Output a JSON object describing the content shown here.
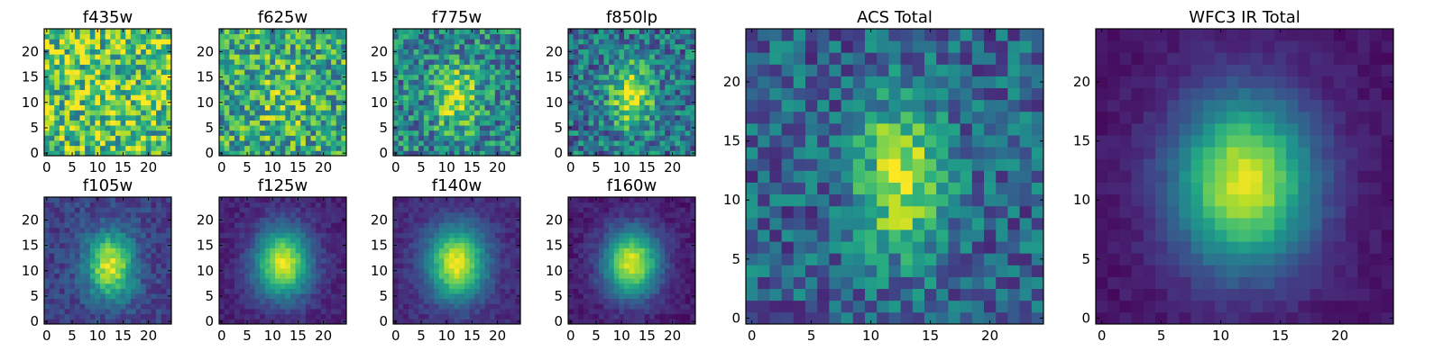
{
  "chart_data": [
    {
      "type": "heatmap",
      "title": "f435w",
      "xticks": [
        0,
        5,
        10,
        15,
        20
      ],
      "yticks": [
        0,
        5,
        10,
        15,
        20
      ],
      "xlim": [
        0,
        24
      ],
      "ylim": [
        0,
        24
      ],
      "colormap": "viridis",
      "source_profile": {
        "center": [
          12,
          11.5
        ],
        "peak": 0.05,
        "noise": 0.35,
        "base": 0.72,
        "spread": [
          3.5,
          4.5
        ],
        "seed": 11
      }
    },
    {
      "type": "heatmap",
      "title": "f625w",
      "xticks": [
        0,
        5,
        10,
        15,
        20
      ],
      "yticks": [
        0,
        5,
        10,
        15,
        20
      ],
      "xlim": [
        0,
        24
      ],
      "ylim": [
        0,
        24
      ],
      "colormap": "viridis",
      "source_profile": {
        "center": [
          12,
          11.5
        ],
        "peak": 0.15,
        "noise": 0.32,
        "base": 0.6,
        "spread": [
          3.5,
          4.5
        ],
        "seed": 23
      }
    },
    {
      "type": "heatmap",
      "title": "f775w",
      "xticks": [
        0,
        5,
        10,
        15,
        20
      ],
      "yticks": [
        0,
        5,
        10,
        15,
        20
      ],
      "xlim": [
        0,
        24
      ],
      "ylim": [
        0,
        24
      ],
      "colormap": "viridis",
      "source_profile": {
        "center": [
          12,
          11
        ],
        "peak": 0.45,
        "noise": 0.28,
        "base": 0.45,
        "spread": [
          3,
          4.5
        ],
        "seed": 37
      }
    },
    {
      "type": "heatmap",
      "title": "f850lp",
      "xticks": [
        0,
        5,
        10,
        15,
        20
      ],
      "yticks": [
        0,
        5,
        10,
        15,
        20
      ],
      "xlim": [
        0,
        24
      ],
      "ylim": [
        0,
        24
      ],
      "colormap": "viridis",
      "source_profile": {
        "center": [
          12,
          11.5
        ],
        "peak": 0.55,
        "noise": 0.26,
        "base": 0.38,
        "spread": [
          3,
          4.5
        ],
        "seed": 41
      }
    },
    {
      "type": "heatmap",
      "title": "f105w",
      "xticks": [
        0,
        5,
        10,
        15,
        20
      ],
      "yticks": [
        0,
        5,
        10,
        15,
        20
      ],
      "xlim": [
        0,
        24
      ],
      "ylim": [
        0,
        24
      ],
      "colormap": "viridis",
      "source_profile": {
        "center": [
          12.5,
          11
        ],
        "peak": 0.75,
        "noise": 0.1,
        "base": 0.2,
        "spread": [
          3.2,
          4.5
        ],
        "seed": 53
      }
    },
    {
      "type": "heatmap",
      "title": "f125w",
      "xticks": [
        0,
        5,
        10,
        15,
        20
      ],
      "yticks": [
        0,
        5,
        10,
        15,
        20
      ],
      "xlim": [
        0,
        24
      ],
      "ylim": [
        0,
        24
      ],
      "colormap": "viridis",
      "source_profile": {
        "center": [
          12,
          11.5
        ],
        "peak": 0.85,
        "noise": 0.06,
        "base": 0.1,
        "spread": [
          3.8,
          4.8
        ],
        "seed": 67
      }
    },
    {
      "type": "heatmap",
      "title": "f140w",
      "xticks": [
        0,
        5,
        10,
        15,
        20
      ],
      "yticks": [
        0,
        5,
        10,
        15,
        20
      ],
      "xlim": [
        0,
        24
      ],
      "ylim": [
        0,
        24
      ],
      "colormap": "viridis",
      "source_profile": {
        "center": [
          12,
          11.5
        ],
        "peak": 0.85,
        "noise": 0.06,
        "base": 0.12,
        "spread": [
          4,
          5
        ],
        "seed": 71
      }
    },
    {
      "type": "heatmap",
      "title": "f160w",
      "xticks": [
        0,
        5,
        10,
        15,
        20
      ],
      "yticks": [
        0,
        5,
        10,
        15,
        20
      ],
      "xlim": [
        0,
        24
      ],
      "ylim": [
        0,
        24
      ],
      "colormap": "viridis",
      "source_profile": {
        "center": [
          12,
          11.5
        ],
        "peak": 0.88,
        "noise": 0.06,
        "base": 0.08,
        "spread": [
          3.8,
          4.6
        ],
        "seed": 83
      }
    },
    {
      "type": "heatmap",
      "title": "ACS Total",
      "xticks": [
        0,
        5,
        10,
        15,
        20
      ],
      "yticks": [
        0,
        5,
        10,
        15,
        20
      ],
      "xlim": [
        0,
        24
      ],
      "ylim": [
        0,
        24
      ],
      "colormap": "viridis",
      "source_profile": {
        "center": [
          12.5,
          12
        ],
        "peak": 0.6,
        "noise": 0.22,
        "base": 0.32,
        "spread": [
          2.5,
          4.5
        ],
        "seed": 97
      }
    },
    {
      "type": "heatmap",
      "title": "WFC3 IR Total",
      "xticks": [
        0,
        5,
        10,
        15,
        20
      ],
      "yticks": [
        0,
        5,
        10,
        15,
        20
      ],
      "xlim": [
        0,
        24
      ],
      "ylim": [
        0,
        24
      ],
      "colormap": "viridis",
      "source_profile": {
        "center": [
          12,
          11.5
        ],
        "peak": 0.9,
        "noise": 0.04,
        "base": 0.06,
        "spread": [
          4,
          5
        ],
        "seed": 101
      }
    }
  ]
}
